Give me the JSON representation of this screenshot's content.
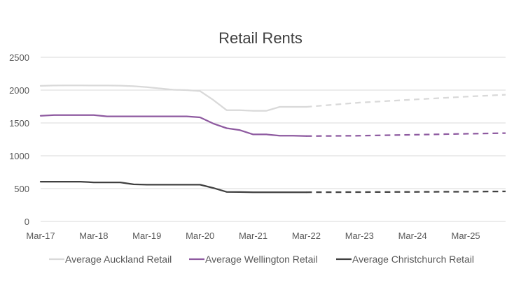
{
  "chart_data": {
    "type": "line",
    "title": "Retail Rents",
    "xlabel": "",
    "ylabel": "",
    "ylim": [
      0,
      2500
    ],
    "yticks": [
      0,
      500,
      1000,
      1500,
      2000,
      2500
    ],
    "xlim": [
      "2017-03",
      "2025-12"
    ],
    "xticks": [
      "Mar-17",
      "Mar-18",
      "Mar-19",
      "Mar-20",
      "Mar-21",
      "Mar-22",
      "Mar-23",
      "Mar-24",
      "Mar-25"
    ],
    "grid": "horizontal",
    "legend_position": "bottom",
    "series": [
      {
        "name": "Average Auckland Retail",
        "color": "#d9d9d9",
        "actual": {
          "x": [
            "2017-03",
            "2017-06",
            "2017-09",
            "2017-12",
            "2018-03",
            "2018-06",
            "2018-09",
            "2018-12",
            "2019-03",
            "2019-06",
            "2019-09",
            "2019-12",
            "2020-03",
            "2020-06",
            "2020-09",
            "2020-12",
            "2021-03",
            "2021-06",
            "2021-09",
            "2021-12",
            "2022-03"
          ],
          "y": [
            2065,
            2070,
            2072,
            2072,
            2070,
            2070,
            2068,
            2060,
            2045,
            2025,
            2005,
            2000,
            1985,
            1850,
            1695,
            1695,
            1685,
            1685,
            1745,
            1745,
            1745
          ]
        },
        "forecast": {
          "x": [
            "2022-03",
            "2023-03",
            "2024-03",
            "2025-03",
            "2025-12"
          ],
          "y": [
            1745,
            1810,
            1855,
            1900,
            1930
          ]
        }
      },
      {
        "name": "Average Wellington Retail",
        "color": "#8e5aa0",
        "actual": {
          "x": [
            "2017-03",
            "2017-06",
            "2017-09",
            "2017-12",
            "2018-03",
            "2018-06",
            "2018-09",
            "2018-12",
            "2019-03",
            "2019-06",
            "2019-09",
            "2019-12",
            "2020-03",
            "2020-06",
            "2020-09",
            "2020-12",
            "2021-03",
            "2021-06",
            "2021-09",
            "2021-12",
            "2022-03"
          ],
          "y": [
            1610,
            1620,
            1620,
            1620,
            1620,
            1600,
            1600,
            1600,
            1600,
            1600,
            1600,
            1600,
            1585,
            1490,
            1420,
            1390,
            1325,
            1325,
            1305,
            1305,
            1300
          ]
        },
        "forecast": {
          "x": [
            "2022-03",
            "2023-03",
            "2024-03",
            "2025-03",
            "2025-12"
          ],
          "y": [
            1300,
            1305,
            1320,
            1335,
            1345
          ]
        }
      },
      {
        "name": "Average Christchurch Retail",
        "color": "#404040",
        "actual": {
          "x": [
            "2017-03",
            "2017-06",
            "2017-09",
            "2017-12",
            "2018-03",
            "2018-06",
            "2018-09",
            "2018-12",
            "2019-03",
            "2019-06",
            "2019-09",
            "2019-12",
            "2020-03",
            "2020-06",
            "2020-09",
            "2020-12",
            "2021-03",
            "2021-06",
            "2021-09",
            "2021-12",
            "2022-03"
          ],
          "y": [
            605,
            605,
            605,
            605,
            595,
            595,
            595,
            565,
            560,
            560,
            560,
            560,
            560,
            510,
            450,
            448,
            445,
            445,
            445,
            445,
            445
          ]
        },
        "forecast": {
          "x": [
            "2022-03",
            "2023-03",
            "2024-03",
            "2025-03",
            "2025-12"
          ],
          "y": [
            445,
            447,
            450,
            453,
            457
          ]
        }
      }
    ]
  }
}
